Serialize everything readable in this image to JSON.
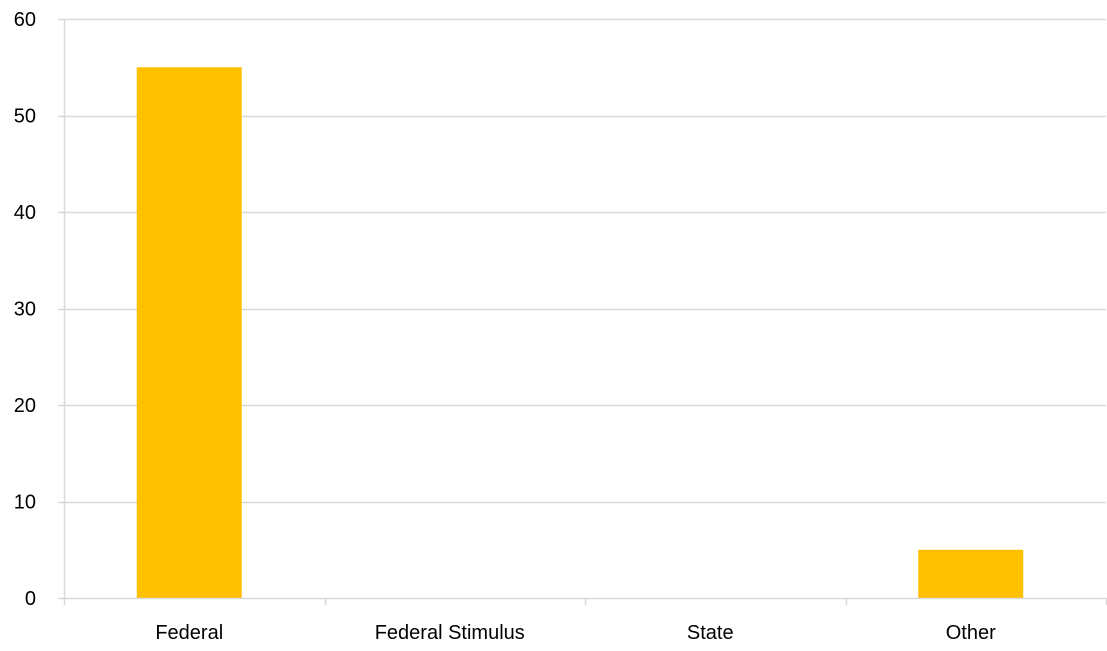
{
  "chart_data": {
    "type": "bar",
    "categories": [
      "Federal",
      "Federal Stimulus",
      "State",
      "Other"
    ],
    "values": [
      55,
      0,
      0,
      5
    ],
    "title": "",
    "xlabel": "",
    "ylabel": "",
    "ylim": [
      0,
      60
    ],
    "y_ticks": [
      "0",
      "10",
      "20",
      "30",
      "40",
      "50",
      "60"
    ],
    "grid": true,
    "legend": "none",
    "colors": {
      "bar": "#FFC000",
      "grid": "#D9D9D9",
      "axis": "#D9D9D9",
      "text": "#000000"
    }
  }
}
